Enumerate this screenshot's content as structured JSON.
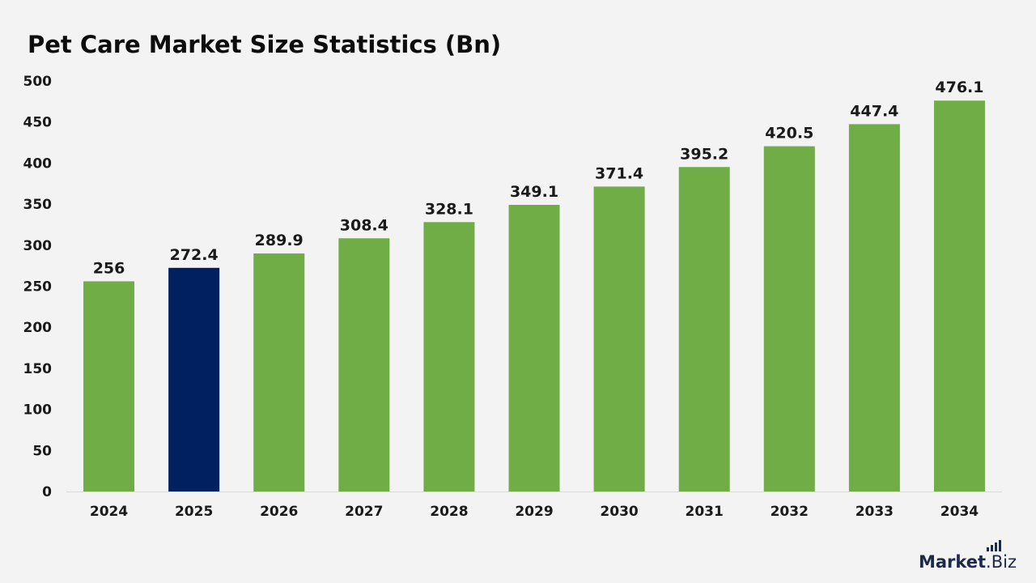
{
  "title": "Pet Care Market Size Statistics (Bn)",
  "brand": {
    "name_bold": "Market",
    "name_regular": ".Biz",
    "icon": "bar-chart-icon"
  },
  "colors": {
    "default_bar": "#70ad47",
    "highlight_bar": "#002060",
    "background": "#f3f3f3",
    "baseline": "#d9d9d9"
  },
  "chart_data": {
    "type": "bar",
    "title": "Pet Care Market Size Statistics (Bn)",
    "xlabel": "",
    "ylabel": "",
    "categories": [
      "2024",
      "2025",
      "2026",
      "2027",
      "2028",
      "2029",
      "2030",
      "2031",
      "2032",
      "2033",
      "2034"
    ],
    "values": [
      256,
      272.4,
      289.9,
      308.4,
      328.1,
      349.1,
      371.4,
      395.2,
      420.5,
      447.4,
      476.1
    ],
    "highlight_category": "2025",
    "ylim": [
      0,
      500
    ],
    "yticks": [
      0,
      50,
      100,
      150,
      200,
      250,
      300,
      350,
      400,
      450,
      500
    ],
    "grid": false,
    "legend": "none",
    "data_labels": true
  }
}
